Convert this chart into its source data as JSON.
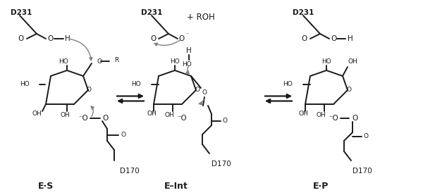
{
  "bg_color": "#ffffff",
  "line_color": "#1a1a1a",
  "arrow_color": "#808080",
  "text_color": "#1a1a1a",
  "fig_width": 6.0,
  "fig_height": 2.77,
  "dpi": 100,
  "label_es": "E·S",
  "label_eint": "E–Int",
  "label_ep": "E·P",
  "roh": "+ ROH"
}
